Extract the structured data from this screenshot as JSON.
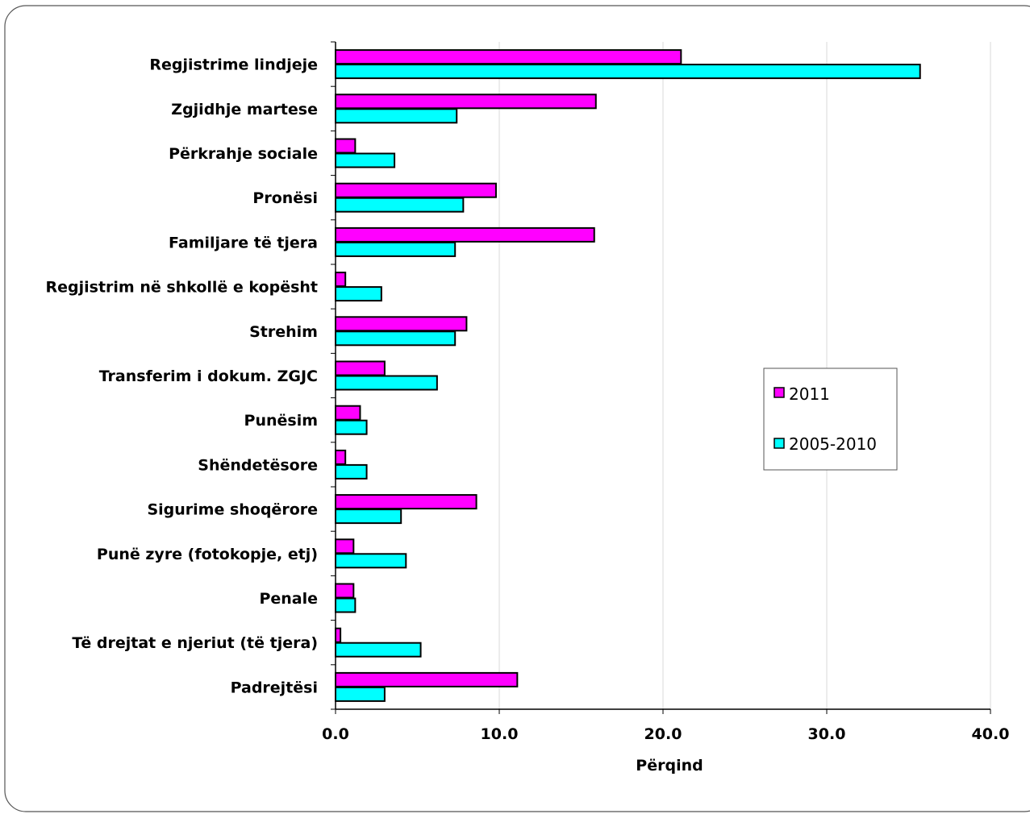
{
  "chart_data": {
    "type": "bar",
    "orientation": "horizontal",
    "categories": [
      "Regjistrime lindjeje",
      "Zgjidhje martese",
      "Përkrahje sociale",
      "Pronësi",
      "Familjare të tjera",
      "Regjistrim në shkollë e kopësht",
      "Strehim",
      "Transferim i dokum. ZGJC",
      "Punësim",
      "Shëndetësore",
      "Sigurime shoqërore",
      "Punë zyre (fotokopje, etj)",
      "Penale",
      "Të drejtat e njeriut (të tjera)",
      "Padrejtësi"
    ],
    "series": [
      {
        "name": "2011",
        "color": "#ff00ff",
        "values": [
          21.1,
          15.9,
          1.2,
          9.8,
          15.8,
          0.6,
          8.0,
          3.0,
          1.5,
          0.6,
          8.6,
          1.1,
          1.1,
          0.3,
          11.1
        ]
      },
      {
        "name": "2005-2010",
        "color": "#00ffff",
        "values": [
          35.7,
          7.4,
          3.6,
          7.8,
          7.3,
          2.8,
          7.3,
          6.2,
          1.9,
          1.9,
          4.0,
          4.3,
          1.2,
          5.2,
          3.0
        ]
      }
    ],
    "xlabel": "Përqind",
    "ylabel": "",
    "xlim": [
      0,
      40
    ],
    "xticks": [
      0,
      10,
      20,
      30,
      40
    ],
    "tick_labels": [
      "0.0",
      "10.0",
      "20.0",
      "30.0",
      "40.0"
    ],
    "grid": "vertical",
    "legend_position": "right"
  }
}
